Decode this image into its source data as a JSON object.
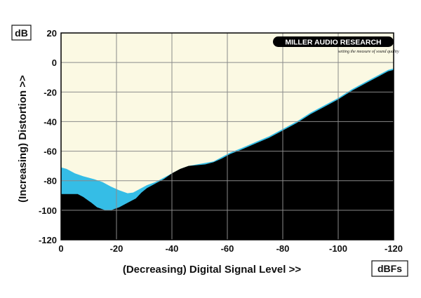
{
  "chart_data": {
    "type": "area",
    "title": "",
    "xlabel": "(Decreasing) Digital Signal Level >>",
    "ylabel": "(Increasing) Distortion >>",
    "y_unit": "dB",
    "x_unit": "dBFs",
    "xlim": [
      0,
      -120
    ],
    "ylim": [
      -120,
      20
    ],
    "x_ticks": [
      0,
      -20,
      -40,
      -60,
      -80,
      -100,
      -120
    ],
    "y_ticks": [
      20,
      0,
      -20,
      -40,
      -60,
      -80,
      -100,
      -120
    ],
    "x_tick_labels": [
      "0",
      "-20",
      "-40",
      "-60",
      "-80",
      "-100",
      "-120"
    ],
    "y_tick_labels": [
      "20",
      "0",
      "-20",
      "-40",
      "-60",
      "-80",
      "-100",
      "-120"
    ],
    "grid": true,
    "colors": {
      "background": "#fbf9e3",
      "upper": "#35bde6",
      "lower": "#000000"
    },
    "series": [
      {
        "values": [
          [
            0,
            -71
          ],
          [
            -2,
            -72
          ],
          [
            -5,
            -75
          ],
          [
            -8,
            -77
          ],
          [
            -12,
            -79
          ],
          [
            -15,
            -81
          ],
          [
            -18,
            -84
          ],
          [
            -21,
            -86.5
          ],
          [
            -24,
            -88.5
          ],
          [
            -26,
            -88
          ],
          [
            -28,
            -86
          ],
          [
            -31,
            -83
          ],
          [
            -34,
            -81
          ],
          [
            -37,
            -78
          ],
          [
            -40,
            -75
          ],
          [
            -43,
            -72
          ],
          [
            -46,
            -70
          ],
          [
            -49,
            -69
          ],
          [
            -52,
            -68
          ],
          [
            -55,
            -67
          ],
          [
            -58,
            -64
          ],
          [
            -61,
            -61
          ],
          [
            -65,
            -58
          ],
          [
            -70,
            -54
          ],
          [
            -75,
            -50
          ],
          [
            -80,
            -45
          ],
          [
            -85,
            -40
          ],
          [
            -90,
            -34
          ],
          [
            -95,
            -29
          ],
          [
            -100,
            -24
          ],
          [
            -105,
            -18
          ],
          [
            -110,
            -13
          ],
          [
            -115,
            -8
          ],
          [
            -118,
            -5
          ],
          [
            -120,
            -4
          ]
        ]
      },
      {
        "values": [
          [
            0,
            -89
          ],
          [
            -4,
            -89
          ],
          [
            -6,
            -89
          ],
          [
            -8,
            -91
          ],
          [
            -11,
            -95
          ],
          [
            -13,
            -98
          ],
          [
            -16,
            -100
          ],
          [
            -18,
            -100
          ],
          [
            -21,
            -98
          ],
          [
            -24,
            -95
          ],
          [
            -27,
            -92
          ],
          [
            -29,
            -88
          ],
          [
            -31,
            -85
          ],
          [
            -34,
            -82
          ],
          [
            -37,
            -79
          ],
          [
            -40,
            -75
          ],
          [
            -43,
            -72
          ],
          [
            -46,
            -70
          ],
          [
            -49,
            -69.5
          ],
          [
            -52,
            -69
          ],
          [
            -55,
            -67.5
          ],
          [
            -58,
            -65
          ],
          [
            -61,
            -62
          ],
          [
            -65,
            -59
          ],
          [
            -70,
            -55
          ],
          [
            -75,
            -51
          ],
          [
            -80,
            -46
          ],
          [
            -85,
            -41
          ],
          [
            -90,
            -35
          ],
          [
            -95,
            -30
          ],
          [
            -100,
            -25
          ],
          [
            -105,
            -19
          ],
          [
            -110,
            -14
          ],
          [
            -115,
            -9
          ],
          [
            -118,
            -6
          ],
          [
            -120,
            -5
          ]
        ]
      }
    ]
  },
  "logo": {
    "name": "MILLER AUDIO RESEARCH",
    "tagline": "setting the measure of sound quality"
  }
}
